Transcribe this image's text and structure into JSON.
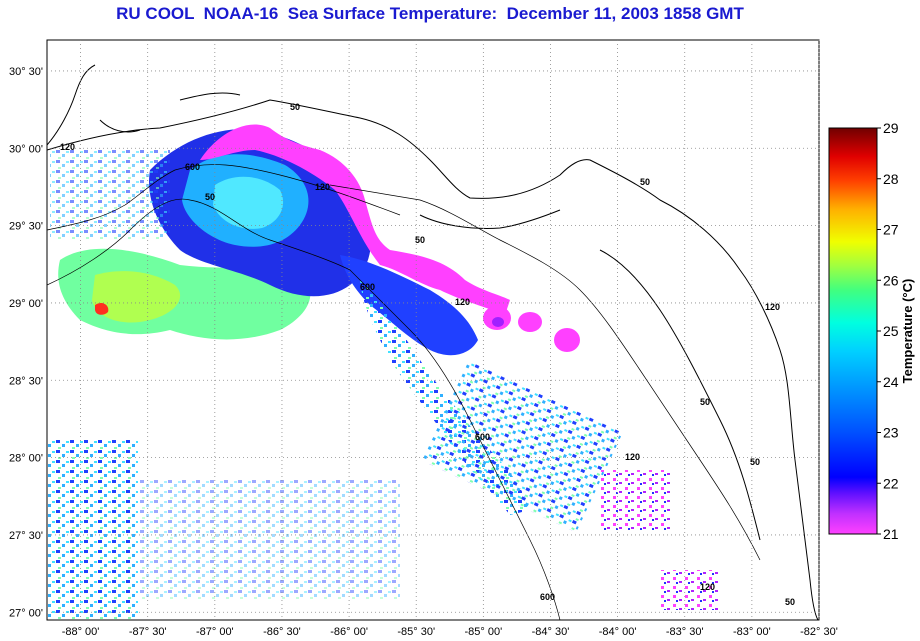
{
  "title": "RU COOL  NOAA-16  Sea Surface Temperature:  December 11, 2003 1858 GMT",
  "map": {
    "lon_labels": [
      "-88° 00'",
      "-87° 30'",
      "-87° 00'",
      "-86° 30'",
      "-86° 00'",
      "-85° 30'",
      "-85° 00'",
      "-84° 30'",
      "-84° 00'",
      "-83° 30'",
      "-83° 00'",
      "-82° 30'"
    ],
    "lat_labels": [
      "30° 30'",
      "30° 00'",
      "29° 30'",
      "29° 00'",
      "28° 30'",
      "28° 00'",
      "27° 30'",
      "27° 00'"
    ],
    "lon_range": [
      -88.25,
      -82.5
    ],
    "lat_range": [
      26.95,
      30.7
    ],
    "grid": "dotted",
    "contour_labels": [
      "50",
      "120",
      "600",
      "50",
      "120",
      "50",
      "600",
      "120",
      "50",
      "120",
      "50",
      "120",
      "600",
      "50",
      "120",
      "600",
      "50"
    ]
  },
  "colorbar": {
    "label": "Temperature (°C)",
    "ticks": [
      "29",
      "28",
      "27",
      "26",
      "25",
      "24",
      "23",
      "22",
      "21"
    ],
    "min": 21,
    "max": 29,
    "colors": [
      "#ff00ff",
      "#9000ff",
      "#0000ff",
      "#0060ff",
      "#00c0ff",
      "#00ffd0",
      "#80ff40",
      "#ffff00",
      "#ffa000",
      "#ff2000",
      "#b00000",
      "#700000"
    ]
  },
  "features": {
    "land_outline_color": "#000000",
    "sst_colors": {
      "cold": "#ff40ff",
      "cool": "#2020e0",
      "mid": "#20a0ff",
      "warm": "#40ffc0",
      "warmer": "#a0ff40",
      "hot": "#ff2020"
    }
  }
}
